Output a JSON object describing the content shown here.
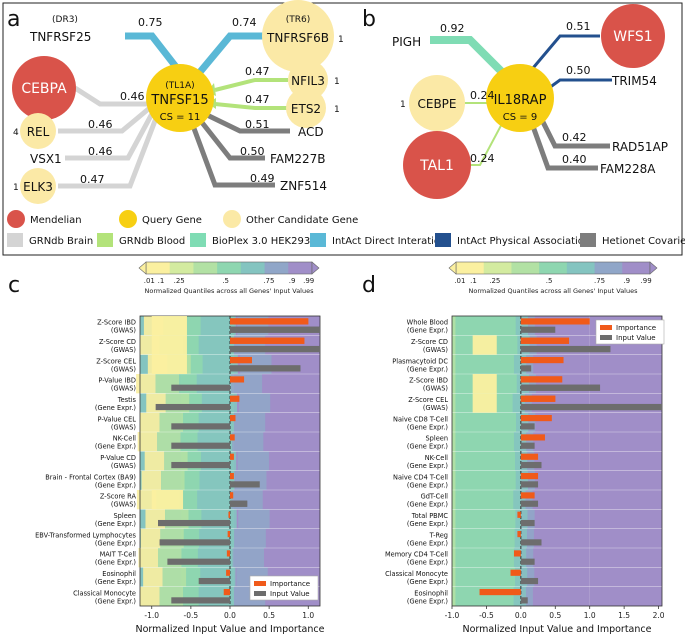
{
  "panel_labels": {
    "a": "a",
    "b": "b",
    "c": "c",
    "d": "d"
  },
  "network_a": {
    "query_gene": {
      "name": "TNFSF15",
      "alias": "(TL1A)",
      "cs": "CS = 11"
    },
    "nodes": [
      {
        "key": "TNFRSF25",
        "label": "TNFRSF25",
        "alias": "(DR3)",
        "type": "intact-direct",
        "weight": "0.75",
        "count": ""
      },
      {
        "key": "CEBPA",
        "label": "CEBPA",
        "type": "grn-brain",
        "weight": "0.46",
        "count": ""
      },
      {
        "key": "REL",
        "label": "REL",
        "type": "grn-brain",
        "weight": "0.46",
        "count": "4"
      },
      {
        "key": "VSX1",
        "label": "VSX1",
        "type": "grn-brain",
        "weight": "0.46",
        "count": ""
      },
      {
        "key": "ELK3",
        "label": "ELK3",
        "type": "grn-brain",
        "weight": "0.47",
        "count": "1"
      },
      {
        "key": "TNFRSF6B",
        "label": "TNFRSF6B",
        "alias": "(TR6)",
        "type": "intact-direct",
        "weight": "0.74",
        "count": "1"
      },
      {
        "key": "NFIL3",
        "label": "NFIL3",
        "type": "grn-blood",
        "weight": "0.47",
        "count": "1"
      },
      {
        "key": "ETS2",
        "label": "ETS2",
        "type": "grn-blood",
        "weight": "0.47",
        "count": "1"
      },
      {
        "key": "ACD",
        "label": "ACD",
        "type": "hetionet",
        "weight": "0.51",
        "count": ""
      },
      {
        "key": "FAM227B",
        "label": "FAM227B",
        "type": "hetionet",
        "weight": "0.50",
        "count": ""
      },
      {
        "key": "ZNF514",
        "label": "ZNF514",
        "type": "hetionet",
        "weight": "0.49",
        "count": ""
      }
    ]
  },
  "network_b": {
    "query_gene": {
      "name": "IL18RAP",
      "cs": "CS = 9"
    },
    "nodes": [
      {
        "key": "PIGH",
        "label": "PIGH",
        "type": "bioplex",
        "weight": "0.92",
        "count": ""
      },
      {
        "key": "CEBPE",
        "label": "CEBPE",
        "type": "grn-blood",
        "weight": "0.24",
        "count": "1"
      },
      {
        "key": "TAL1",
        "label": "TAL1",
        "type": "grn-blood",
        "weight": "0.24",
        "count": ""
      },
      {
        "key": "WFS1",
        "label": "WFS1",
        "type": "intact-physical",
        "weight": "0.51",
        "count": ""
      },
      {
        "key": "TRIM54",
        "label": "TRIM54",
        "type": "intact-physical",
        "weight": "0.50",
        "count": ""
      },
      {
        "key": "RAD51AP",
        "label": "RAD51AP",
        "type": "hetionet",
        "weight": "0.42",
        "count": ""
      },
      {
        "key": "FAM228A",
        "label": "FAM228A",
        "type": "hetionet",
        "weight": "0.40",
        "count": ""
      }
    ]
  },
  "legend": {
    "nodes": [
      {
        "key": "mendelian",
        "label": "Mendelian",
        "color": "#d9534a"
      },
      {
        "key": "query",
        "label": "Query Gene",
        "color": "#f7cf12"
      },
      {
        "key": "candidate",
        "label": "Other Candidate Gene",
        "color": "#fbe9a6"
      }
    ],
    "edges": [
      {
        "key": "grn-brain",
        "label": "GRNdb Brain",
        "color": "#d4d4d4"
      },
      {
        "key": "grn-blood",
        "label": "GRNdb Blood",
        "color": "#b3e37a"
      },
      {
        "key": "bioplex",
        "label": "BioPlex 3.0 HEK293T",
        "color": "#7fdcb4"
      },
      {
        "key": "intact-direct",
        "label": "IntAct Direct Interation",
        "color": "#5ab8d6"
      },
      {
        "key": "intact-physical",
        "label": "IntAct Physical Association",
        "color": "#23508e"
      },
      {
        "key": "hetionet",
        "label": "Hetionet Covaries",
        "color": "#7d7d7d"
      }
    ]
  },
  "colorbar": {
    "ticks": [
      ".01",
      ".1",
      ".25",
      ".5",
      ".75",
      ".9",
      ".99"
    ],
    "caption": "Normalized Quantiles across all Genes' Input Values",
    "colors": [
      "#fbf0a0",
      "#d3eba0",
      "#b2e1a4",
      "#8ed6b0",
      "#84c4c0",
      "#90a6c8",
      "#a08ec8"
    ]
  },
  "chart_data": [
    {
      "type": "bar",
      "panel": "c",
      "title": "",
      "xlabel": "Normalized Input Value and Importance",
      "xlim": [
        -1.15,
        1.15
      ],
      "xticks": [
        "-1.0",
        "-0.5",
        "0.0",
        "0.5",
        "1.0"
      ],
      "legend": {
        "importance": "Importance",
        "input": "Input Value"
      },
      "features": [
        {
          "name": "Z-Score IBD",
          "sub": "(GWAS)",
          "importance": 1.0,
          "input": 1.6
        },
        {
          "name": "Z-Score CD",
          "sub": "(GWAS)",
          "importance": 0.95,
          "input": 1.75
        },
        {
          "name": "Z-Score CEL",
          "sub": "(GWAS)",
          "importance": 0.28,
          "input": 0.9
        },
        {
          "name": "P-Value IBD",
          "sub": "(GWAS)",
          "importance": 0.18,
          "input": -0.75
        },
        {
          "name": "Testis",
          "sub": "(Gene Expr.)",
          "importance": 0.12,
          "input": -0.95
        },
        {
          "name": "P-Value CEL",
          "sub": "(GWAS)",
          "importance": 0.07,
          "input": -0.75
        },
        {
          "name": "NK-Cell",
          "sub": "(Gene Expr.)",
          "importance": 0.06,
          "input": -0.75
        },
        {
          "name": "P-Value CD",
          "sub": "(GWAS)",
          "importance": 0.05,
          "input": -0.75
        },
        {
          "name": "Brain - Frontal Cortex (BA9)",
          "sub": "(Gene Expr.)",
          "importance": 0.05,
          "input": 0.38
        },
        {
          "name": "Z-Score RA",
          "sub": "(GWAS)",
          "importance": 0.04,
          "input": 0.22
        },
        {
          "name": "Spleen",
          "sub": "(Gene Expr.)",
          "importance": -0.02,
          "input": -0.92
        },
        {
          "name": "EBV-Transformed Lymphocytes",
          "sub": "(Gene Expr.)",
          "importance": -0.03,
          "input": -0.9
        },
        {
          "name": "MAIT T-Cell",
          "sub": "(Gene Expr.)",
          "importance": -0.04,
          "input": -0.8
        },
        {
          "name": "Eosinophil",
          "sub": "(Gene Expr.)",
          "importance": -0.05,
          "input": -0.4
        },
        {
          "name": "Classical Monocyte",
          "sub": "(Gene Expr.)",
          "importance": -0.08,
          "input": -0.75
        }
      ]
    },
    {
      "type": "bar",
      "panel": "d",
      "title": "",
      "xlabel": "Normalized Input Value and Importance",
      "xlim": [
        -1.0,
        2.05
      ],
      "xticks": [
        "-1.0",
        "-0.5",
        "0.0",
        "0.5",
        "1.0",
        "1.5",
        "2.0"
      ],
      "legend": {
        "importance": "Importance",
        "input": "Input Value"
      },
      "features": [
        {
          "name": "Whole Blood",
          "sub": "(Gene Expr.)",
          "importance": 1.0,
          "input": 0.5
        },
        {
          "name": "Z-Score CD",
          "sub": "(GWAS)",
          "importance": 0.7,
          "input": 1.3
        },
        {
          "name": "Plasmacytoid DC",
          "sub": "(Gene Expr.)",
          "importance": 0.62,
          "input": 0.15
        },
        {
          "name": "Z-Score IBD",
          "sub": "(GWAS)",
          "importance": 0.6,
          "input": 1.15
        },
        {
          "name": "Z-Score CEL",
          "sub": "(GWAS)",
          "importance": 0.5,
          "input": 2.05
        },
        {
          "name": "Naive CD8 T-Cell",
          "sub": "(Gene Expr.)",
          "importance": 0.45,
          "input": 0.2
        },
        {
          "name": "Spleen",
          "sub": "(Gene Expr.)",
          "importance": 0.35,
          "input": 0.2
        },
        {
          "name": "NK-Cell",
          "sub": "(Gene Expr.)",
          "importance": 0.25,
          "input": 0.3
        },
        {
          "name": "Naive CD4 T-Cell",
          "sub": "(Gene Expr.)",
          "importance": 0.25,
          "input": 0.25
        },
        {
          "name": "GdT-Cell",
          "sub": "(Gene Expr.)",
          "importance": 0.2,
          "input": 0.25
        },
        {
          "name": "Total PBMC",
          "sub": "(Gene Expr.)",
          "importance": -0.05,
          "input": 0.2
        },
        {
          "name": "T-Reg",
          "sub": "(Gene Expr.)",
          "importance": -0.05,
          "input": 0.3
        },
        {
          "name": "Memory CD4 T-Cell",
          "sub": "(Gene Expr.)",
          "importance": -0.1,
          "input": 0.2
        },
        {
          "name": "Classical Monocyte",
          "sub": "(Gene Expr.)",
          "importance": -0.15,
          "input": 0.25
        },
        {
          "name": "Eosinophil",
          "sub": "(Gene Expr.)",
          "importance": -0.6,
          "input": 0.1
        }
      ]
    }
  ]
}
